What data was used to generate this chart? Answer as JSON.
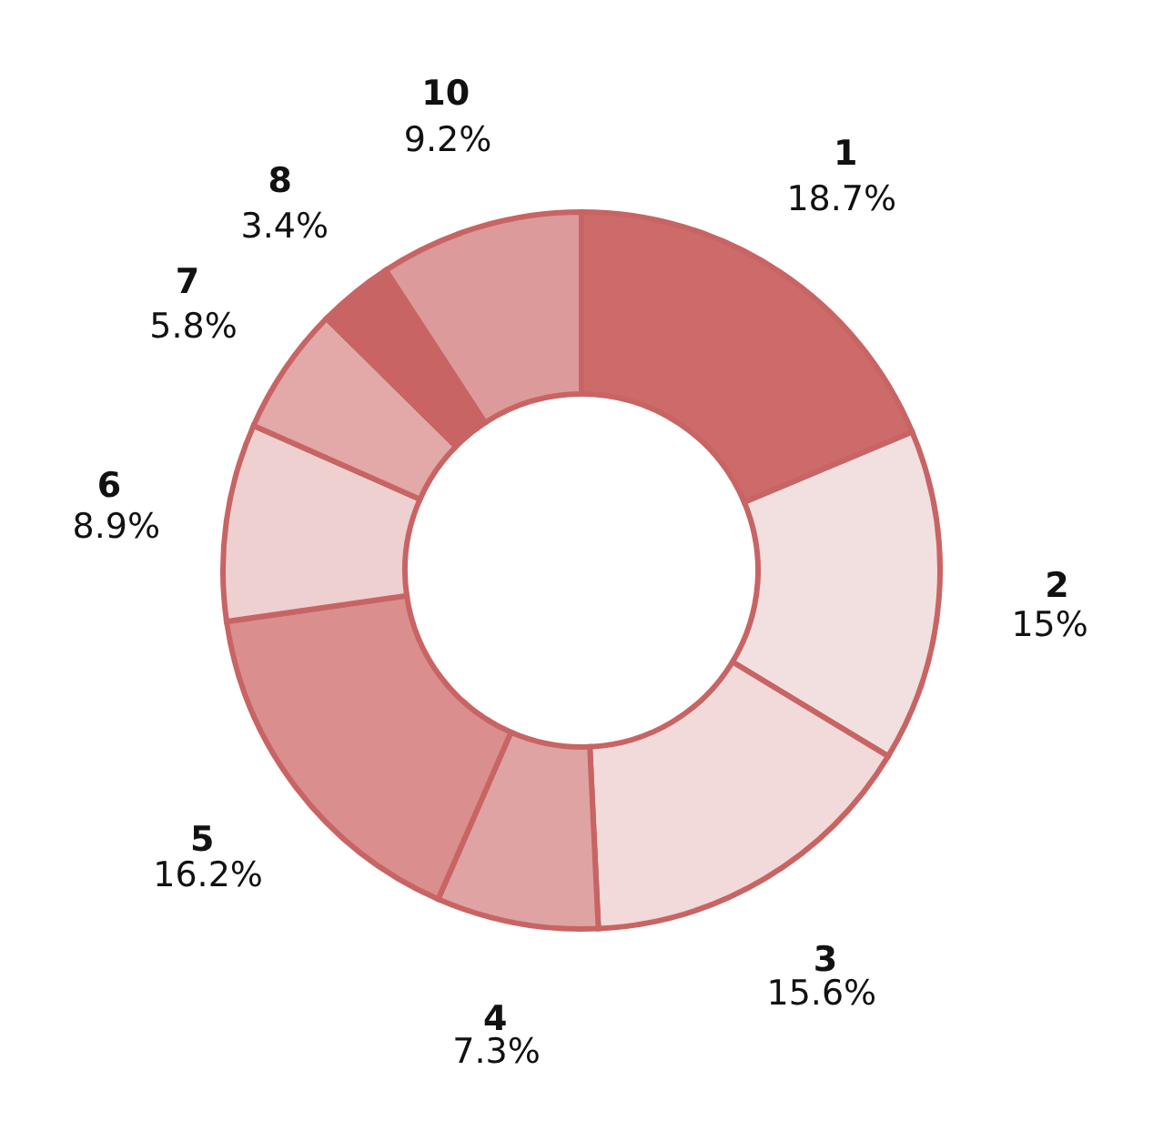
{
  "chart_data": {
    "type": "donut",
    "categories": [
      "1",
      "2",
      "3",
      "4",
      "5",
      "6",
      "7",
      "8",
      "10"
    ],
    "values": [
      18.7,
      15,
      15.6,
      7.3,
      16.2,
      8.9,
      5.8,
      3.4,
      9.2
    ],
    "value_labels": [
      "18.7%",
      "15%",
      "15.6%",
      "7.3%",
      "16.2%",
      "8.9%",
      "5.8%",
      "3.4%",
      "9.2%"
    ],
    "colors": [
      "#cd6b6b",
      "#f2e0e0",
      "#f3dada",
      "#dfa3a3",
      "#db8e8e",
      "#eed0d0",
      "#e3a8a8",
      "#c86464",
      "#dd9a9a"
    ]
  }
}
